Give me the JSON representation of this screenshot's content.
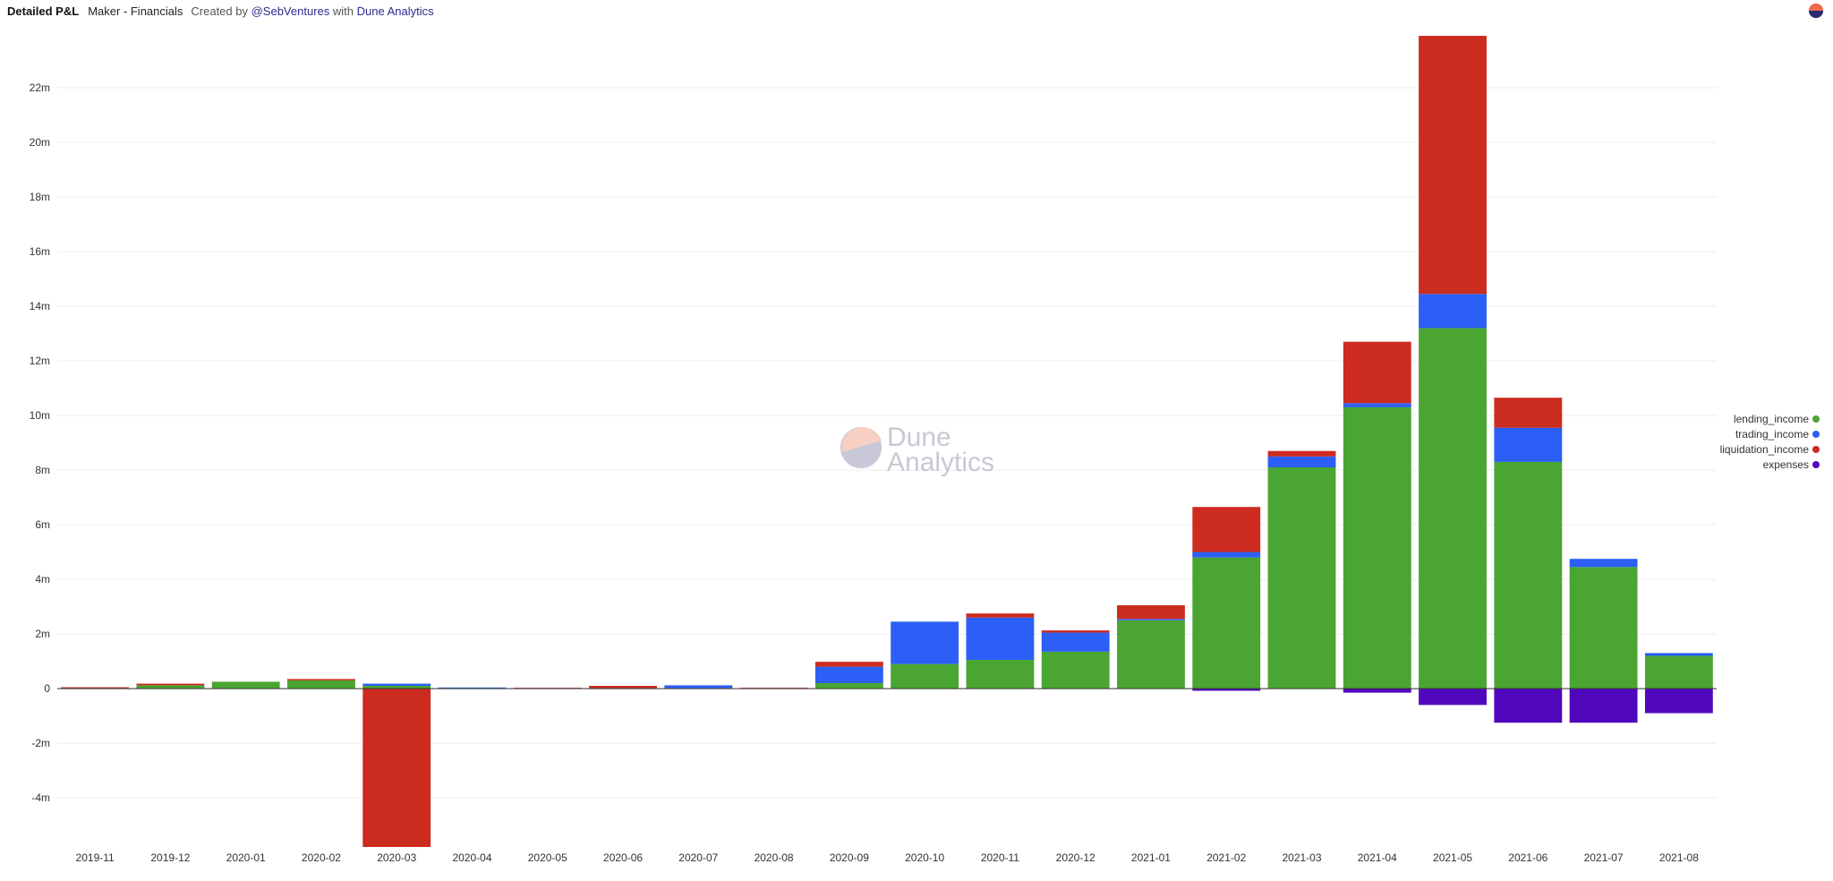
{
  "header": {
    "title": "Detailed P&L",
    "subtitle": "Maker - Financials",
    "created_by": "Created by",
    "author": "@SebVentures",
    "with": "with",
    "platform": "Dune Analytics"
  },
  "watermark": {
    "line1": "Dune",
    "line2": "Analytics"
  },
  "colors": {
    "lending_income": "#4aa532",
    "trading_income": "#2b5ff5",
    "liquidation_income": "#cc2b20",
    "expenses": "#5108bd"
  },
  "chart_data": {
    "type": "bar",
    "stacked": true,
    "categories": [
      "2019-11",
      "2019-12",
      "2020-01",
      "2020-02",
      "2020-03",
      "2020-04",
      "2020-05",
      "2020-06",
      "2020-07",
      "2020-08",
      "2020-09",
      "2020-10",
      "2020-11",
      "2020-12",
      "2021-01",
      "2021-02",
      "2021-03",
      "2021-04",
      "2021-05",
      "2021-06",
      "2021-07",
      "2021-08"
    ],
    "series": [
      {
        "name": "lending_income",
        "color": "#4aa532",
        "values": [
          0.02,
          0.12,
          0.25,
          0.3,
          0.1,
          0.02,
          0.01,
          0.02,
          0.02,
          0.0,
          0.2,
          0.9,
          1.05,
          1.35,
          2.5,
          4.8,
          8.1,
          10.3,
          13.2,
          8.3,
          4.45,
          1.2
        ]
      },
      {
        "name": "trading_income",
        "color": "#2b5ff5",
        "values": [
          0.0,
          0.0,
          0.0,
          0.0,
          0.08,
          0.02,
          0.0,
          0.0,
          0.1,
          0.0,
          0.6,
          1.55,
          1.55,
          0.7,
          0.05,
          0.2,
          0.4,
          0.15,
          1.25,
          1.25,
          0.3,
          0.1
        ]
      },
      {
        "name": "liquidation_income",
        "color": "#cc2b20",
        "values": [
          0.03,
          0.06,
          0.0,
          0.05,
          -5.8,
          0.0,
          0.02,
          0.08,
          0.0,
          0.03,
          0.18,
          0.0,
          0.15,
          0.08,
          0.5,
          1.65,
          0.2,
          2.25,
          9.45,
          1.1,
          0.0,
          0.0
        ]
      },
      {
        "name": "expenses",
        "color": "#5108bd",
        "values": [
          0.0,
          0.0,
          0.0,
          0.0,
          0.0,
          0.0,
          0.0,
          0.0,
          0.0,
          0.0,
          0.0,
          0.0,
          0.0,
          0.0,
          0.0,
          -0.08,
          0.0,
          -0.15,
          -0.6,
          -1.25,
          -1.25,
          -0.9
        ]
      }
    ],
    "yticks": [
      -4,
      -2,
      0,
      2,
      4,
      6,
      8,
      10,
      12,
      14,
      16,
      18,
      20,
      22
    ],
    "ytick_labels": [
      "-4m",
      "-2m",
      "0",
      "2m",
      "4m",
      "6m",
      "8m",
      "10m",
      "12m",
      "14m",
      "16m",
      "18m",
      "20m",
      "22m"
    ],
    "ylim": [
      -5.8,
      24.0
    ],
    "grid": true,
    "legend_position": "right"
  }
}
